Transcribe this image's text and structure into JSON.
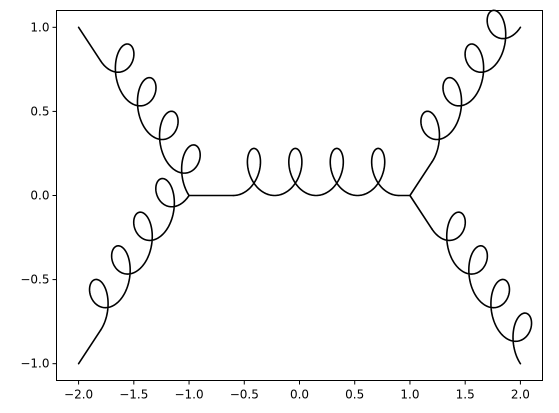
{
  "chart_data": {
    "type": "line",
    "title": "",
    "xlabel": "",
    "ylabel": "",
    "xlim": [
      -2.2,
      2.2
    ],
    "ylim": [
      -1.1,
      1.1
    ],
    "grid": false,
    "legend": null,
    "line_color": "#000000",
    "x_ticks": [
      -2.0,
      -1.5,
      -1.0,
      -0.5,
      0.0,
      0.5,
      1.0,
      1.5,
      2.0
    ],
    "x_tick_labels": [
      "−2.0",
      "−1.5",
      "−1.0",
      "−0.5",
      "0.0",
      "0.5",
      "1.0",
      "1.5",
      "2.0"
    ],
    "y_ticks": [
      -1.0,
      -0.5,
      0.0,
      0.5,
      1.0
    ],
    "y_tick_labels": [
      "−1.0",
      "−0.5",
      "0.0",
      "0.5",
      "1.0"
    ],
    "series": [
      {
        "kind": "straight",
        "points": [
          [
            -2.0,
            1.0
          ],
          [
            -1.8,
            0.8
          ]
        ]
      },
      {
        "kind": "coil",
        "from": [
          -1.8,
          0.8
        ],
        "to": [
          -1.0,
          0.0
        ],
        "loops": 4,
        "radius": 0.13
      },
      {
        "kind": "straight",
        "points": [
          [
            -2.0,
            -1.0
          ],
          [
            -1.8,
            -0.8
          ]
        ]
      },
      {
        "kind": "coil",
        "from": [
          -1.8,
          -0.8
        ],
        "to": [
          -1.0,
          0.0
        ],
        "loops": 4,
        "radius": 0.13
      },
      {
        "kind": "straight",
        "points": [
          [
            -1.0,
            0.0
          ],
          [
            -0.6,
            0.0
          ]
        ]
      },
      {
        "kind": "coil",
        "from": [
          -0.6,
          0.0
        ],
        "to": [
          0.9,
          0.0
        ],
        "loops": 4,
        "radius": 0.14
      },
      {
        "kind": "straight",
        "points": [
          [
            0.9,
            0.0
          ],
          [
            1.0,
            0.0
          ],
          [
            1.2,
            0.2
          ]
        ]
      },
      {
        "kind": "coil",
        "from": [
          1.2,
          0.2
        ],
        "to": [
          2.0,
          1.0
        ],
        "loops": 4,
        "radius": 0.13
      },
      {
        "kind": "straight",
        "points": [
          [
            1.0,
            0.0
          ],
          [
            1.2,
            -0.2
          ]
        ]
      },
      {
        "kind": "coil",
        "from": [
          1.2,
          -0.2
        ],
        "to": [
          2.0,
          -1.0
        ],
        "loops": 4,
        "radius": 0.13
      }
    ]
  }
}
